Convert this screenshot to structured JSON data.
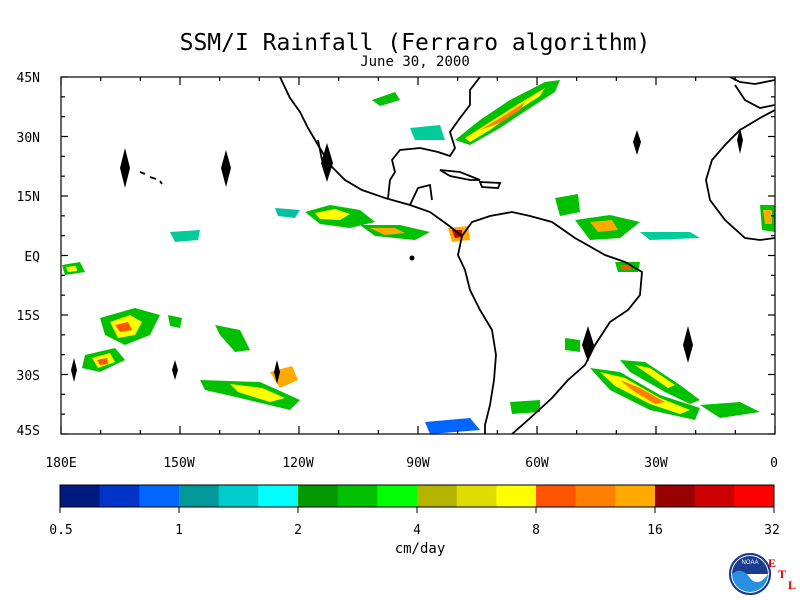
{
  "title": "SSM/I Rainfall (Ferraro algorithm)",
  "subtitle": "June 30, 2000",
  "y_axis": {
    "ticks": [
      "45N",
      "30N",
      "15N",
      "EQ",
      "15S",
      "30S",
      "45S"
    ]
  },
  "x_axis": {
    "ticks": [
      "180E",
      "150W",
      "120W",
      "90W",
      "60W",
      "30W",
      "0"
    ]
  },
  "colorbar": {
    "units": "cm/day",
    "tick_labels": [
      "0.5",
      "1",
      "2",
      "4",
      "8",
      "16",
      "32"
    ],
    "colors": [
      "#001a80",
      "#0033c8",
      "#0066ff",
      "#009999",
      "#00cccc",
      "#00ffff",
      "#009900",
      "#00c000",
      "#00ff00",
      "#b3b300",
      "#dddd00",
      "#ffff00",
      "#ff5500",
      "#ff8000",
      "#ffaa00",
      "#990000",
      "#cc0000",
      "#ff0000"
    ]
  },
  "logo": {
    "badge_text": "NOAA",
    "letters": [
      "E",
      "T",
      "L"
    ]
  }
}
